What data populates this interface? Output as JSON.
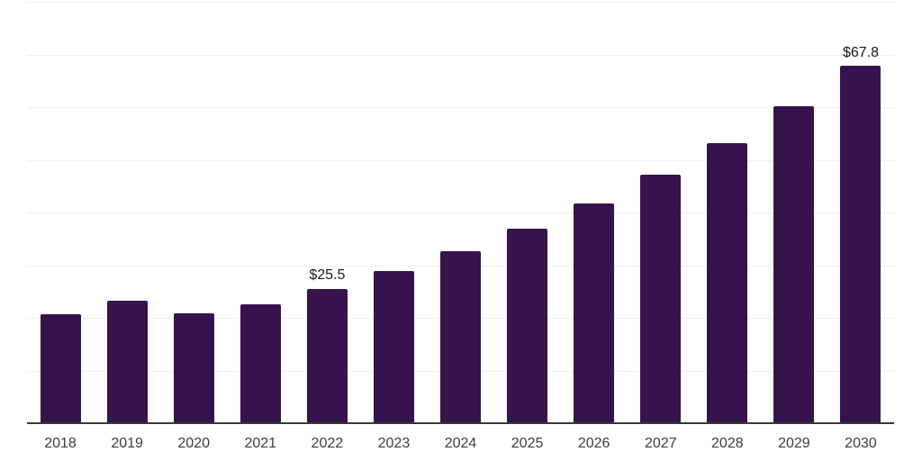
{
  "chart_data": {
    "type": "bar",
    "title": "",
    "xlabel": "",
    "ylabel": "",
    "categories": [
      "2018",
      "2019",
      "2020",
      "2021",
      "2022",
      "2023",
      "2024",
      "2025",
      "2026",
      "2027",
      "2028",
      "2029",
      "2030"
    ],
    "values": [
      20.7,
      23.3,
      20.8,
      22.5,
      25.5,
      28.9,
      32.6,
      36.9,
      41.7,
      47.1,
      53.2,
      60.1,
      67.8
    ],
    "ylim": [
      0,
      80
    ],
    "gridline_interval": 10,
    "grid": "horizontal-only",
    "legend": "none",
    "y_tick_labels_visible": false,
    "annotations": [
      {
        "category": "2022",
        "label": "$25.5"
      },
      {
        "category": "2030",
        "label": "$67.8"
      }
    ]
  },
  "colors": {
    "bar": "#36134D",
    "gridline": "#F0F0F2",
    "axis_line": "#3A3A3A",
    "tick_label": "#3D3D3D",
    "annotation_text": "#1A1A1A",
    "background": "#FFFFFF"
  }
}
